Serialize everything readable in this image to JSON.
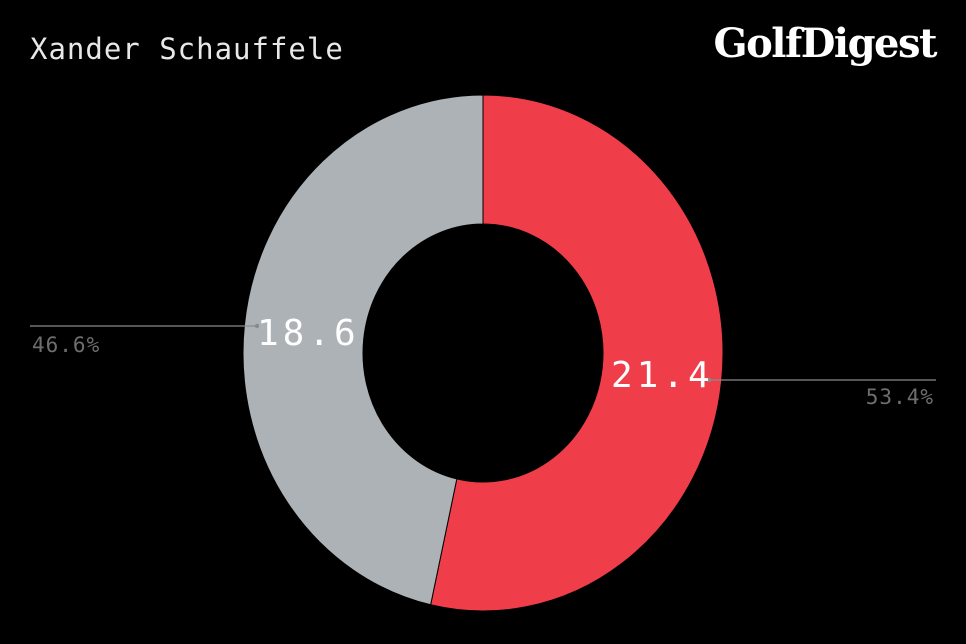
{
  "header": {
    "title": "Xander Schauffele",
    "logo_text": "GolfDigest"
  },
  "colors": {
    "background": "#000000",
    "series_a": "#ef3e4a",
    "series_b": "#acb2b5",
    "leader_line": "#8a8a8a",
    "pct_text": "#6e6e6e"
  },
  "chart_data": {
    "type": "pie",
    "style": "donut",
    "title": "Xander Schauffele",
    "slices": [
      {
        "value": 21.4,
        "value_label": "21.4",
        "percent_label": "53.4%",
        "color": "#ef3e4a"
      },
      {
        "value": 18.6,
        "value_label": "18.6",
        "percent_label": "46.6%",
        "color": "#acb2b5"
      }
    ]
  }
}
